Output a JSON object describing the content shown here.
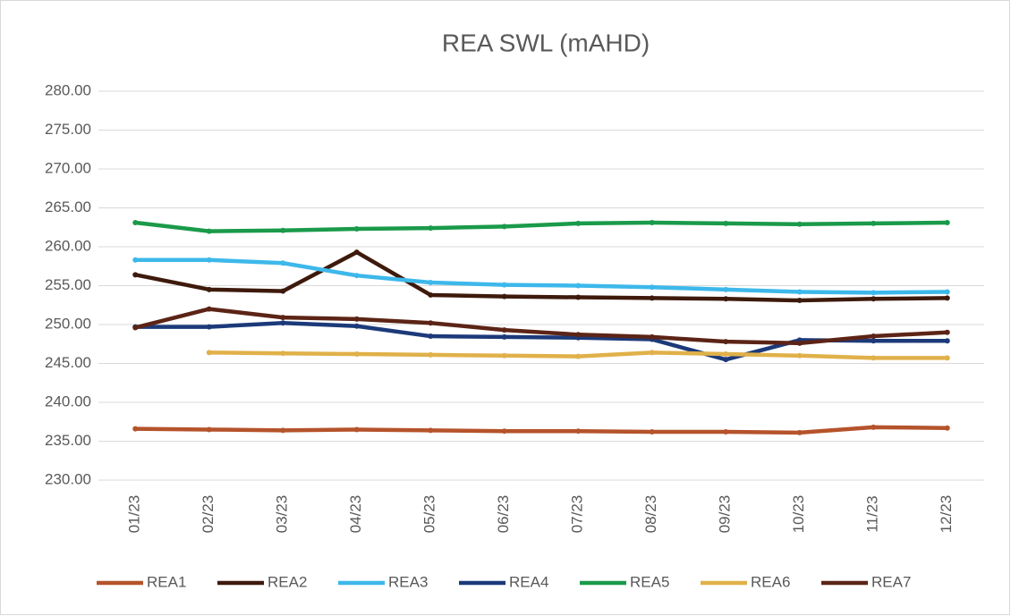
{
  "chart_data": {
    "type": "line",
    "title": "REA SWL (mAHD)",
    "categories": [
      "01/23",
      "02/23",
      "03/23",
      "04/23",
      "05/23",
      "06/23",
      "07/23",
      "08/23",
      "09/23",
      "10/23",
      "11/23",
      "12/23"
    ],
    "series": [
      {
        "name": "REA1",
        "color": "#b5532b",
        "values": [
          236.6,
          236.5,
          236.4,
          236.5,
          236.4,
          236.3,
          236.3,
          236.2,
          236.2,
          236.1,
          236.8,
          236.7
        ]
      },
      {
        "name": "REA2",
        "color": "#3e1a0c",
        "values": [
          256.4,
          254.5,
          254.3,
          259.3,
          253.8,
          253.6,
          253.5,
          253.4,
          253.3,
          253.1,
          253.3,
          253.4
        ]
      },
      {
        "name": "REA3",
        "color": "#3db8ea",
        "values": [
          258.3,
          258.3,
          257.9,
          256.3,
          255.4,
          255.1,
          255.0,
          254.8,
          254.5,
          254.2,
          254.1,
          254.2
        ]
      },
      {
        "name": "REA4",
        "color": "#1c3a7a",
        "values": [
          249.7,
          249.7,
          250.2,
          249.8,
          248.5,
          248.4,
          248.3,
          248.1,
          245.5,
          248.0,
          247.9,
          247.9
        ]
      },
      {
        "name": "REA5",
        "color": "#1a9a4a",
        "values": [
          263.1,
          262.0,
          262.1,
          262.3,
          262.4,
          262.6,
          263.0,
          263.1,
          263.0,
          262.9,
          263.0,
          263.1
        ]
      },
      {
        "name": "REA6",
        "color": "#e0b14a",
        "values": [
          null,
          246.4,
          246.3,
          246.2,
          246.1,
          246.0,
          245.9,
          246.4,
          246.2,
          246.0,
          245.7,
          245.7
        ]
      },
      {
        "name": "REA7",
        "color": "#5c2416",
        "values": [
          249.6,
          252.0,
          250.9,
          250.7,
          250.2,
          249.3,
          248.7,
          248.4,
          247.8,
          247.6,
          248.5,
          249.0
        ]
      }
    ],
    "ylim": [
      230,
      280
    ],
    "yticks": [
      {
        "value": 230,
        "label": "230.00"
      },
      {
        "value": 235,
        "label": "235.00"
      },
      {
        "value": 240,
        "label": "240.00"
      },
      {
        "value": 245,
        "label": "245.00"
      },
      {
        "value": 250,
        "label": "250.00"
      },
      {
        "value": 255,
        "label": "255.00"
      },
      {
        "value": 260,
        "label": "260.00"
      },
      {
        "value": 265,
        "label": "265.00"
      },
      {
        "value": 270,
        "label": "270.00"
      },
      {
        "value": 275,
        "label": "275.00"
      },
      {
        "value": 280,
        "label": "280.00"
      }
    ],
    "grid": true,
    "legend": "bottom"
  }
}
